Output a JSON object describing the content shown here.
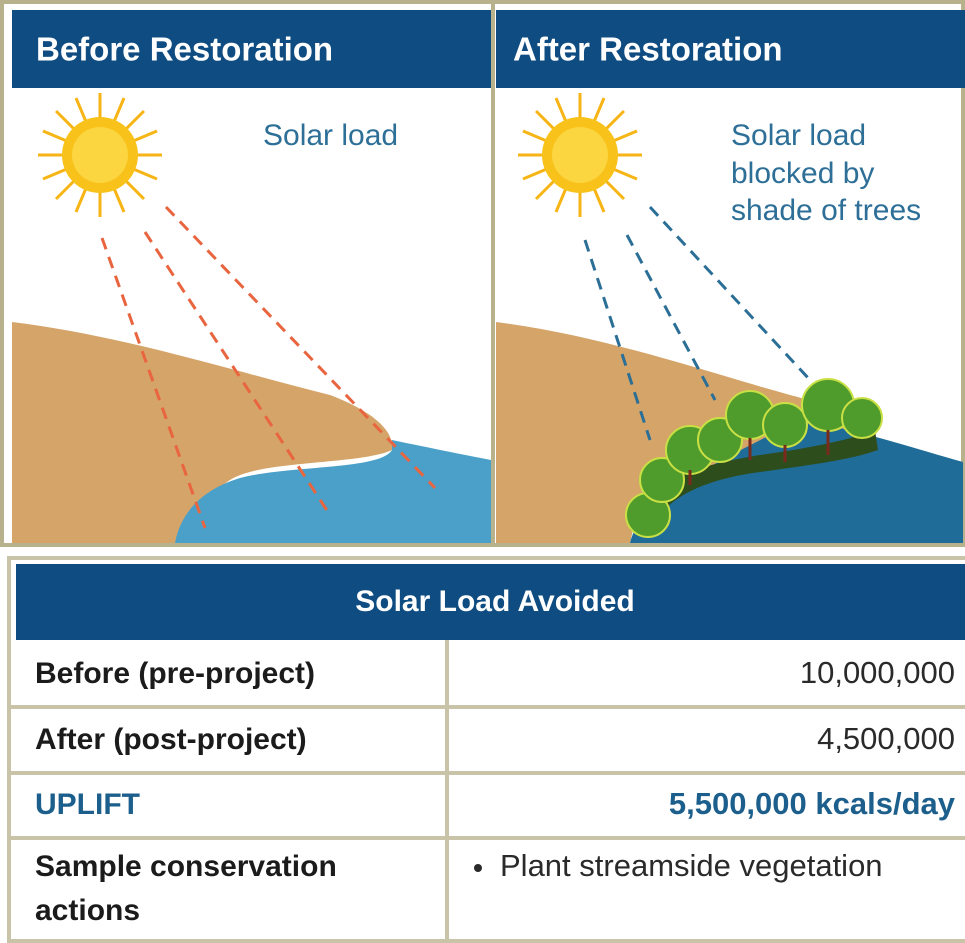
{
  "panels": [
    {
      "title": "Before Restoration",
      "caption": [
        "Solar load"
      ]
    },
    {
      "title": "After Restoration",
      "caption": [
        "Solar load",
        "blocked by",
        "shade of trees"
      ]
    }
  ],
  "table": {
    "title": "Solar Load Avoided",
    "rows": [
      {
        "label": [
          "Before (pre-project)"
        ],
        "value": "10,000,000"
      },
      {
        "label": [
          "After (post-project)"
        ],
        "value": "4,500,000"
      },
      {
        "label": [
          "UPLIFT"
        ],
        "value": "5,500,000 kcals/day"
      },
      {
        "label": [
          "Sample conservation",
          "actions"
        ],
        "value": "Plant streamside vegetation"
      }
    ]
  }
}
